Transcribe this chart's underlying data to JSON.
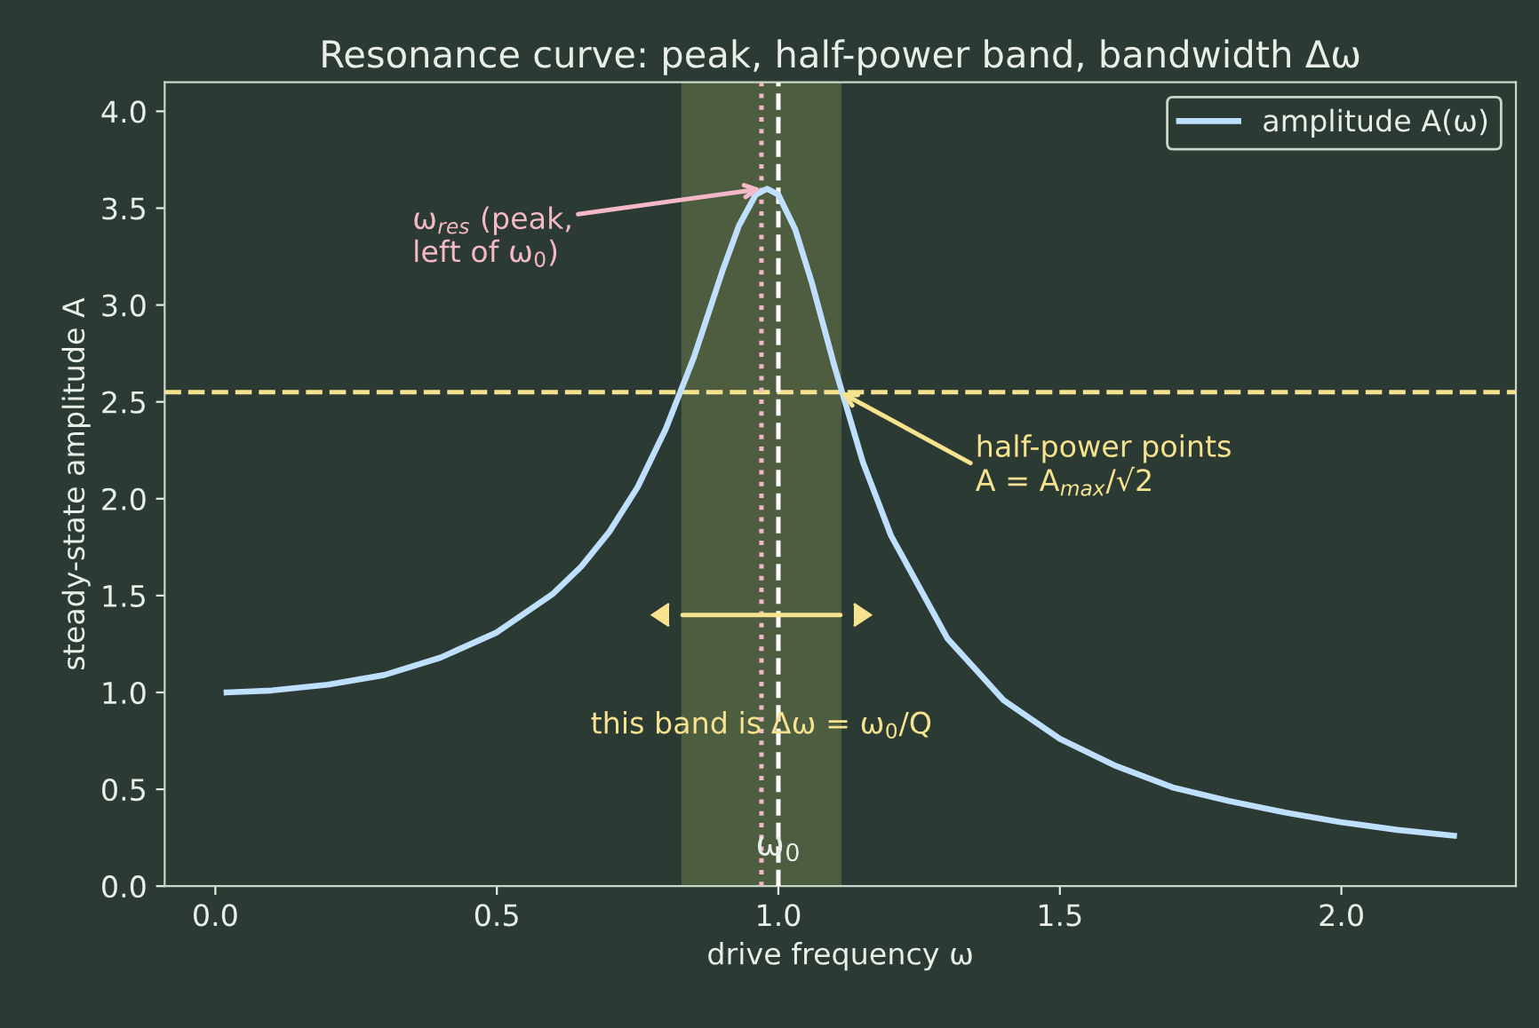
{
  "chart_data": {
    "type": "line",
    "title": "Resonance curve: peak, half-power band, bandwidth Δω",
    "xlabel": "drive frequency ω",
    "ylabel": "steady-state amplitude A",
    "series": [
      {
        "name": "amplitude A(ω)",
        "color": "#bfdfff",
        "x": [
          0.02,
          0.1,
          0.2,
          0.3,
          0.4,
          0.5,
          0.6,
          0.65,
          0.7,
          0.75,
          0.8,
          0.85,
          0.9,
          0.93,
          0.96,
          0.98,
          1.0,
          1.03,
          1.06,
          1.1,
          1.15,
          1.2,
          1.3,
          1.4,
          1.5,
          1.6,
          1.7,
          1.8,
          1.9,
          2.0,
          2.1,
          2.2
        ],
        "values": [
          1.0,
          1.01,
          1.04,
          1.09,
          1.18,
          1.31,
          1.51,
          1.65,
          1.83,
          2.06,
          2.36,
          2.73,
          3.17,
          3.41,
          3.57,
          3.6,
          3.57,
          3.39,
          3.11,
          2.68,
          2.19,
          1.81,
          1.28,
          0.96,
          0.76,
          0.62,
          0.51,
          0.44,
          0.38,
          0.33,
          0.29,
          0.26
        ]
      },
      {
        "type": "line",
        "color": "#f7e38f",
        "x": [
          0.83,
          1.11
        ],
        "values": [
          1.4,
          1.4
        ]
      }
    ],
    "xlim": [
      -0.09,
      2.31
    ],
    "ylim": [
      0,
      4.15
    ],
    "xticks": [
      {
        "value": 0,
        "label": "0.0"
      },
      {
        "value": 0.5,
        "label": "0.5"
      },
      {
        "value": 1,
        "label": "1.0"
      },
      {
        "value": 1.5,
        "label": "1.5"
      },
      {
        "value": 2,
        "label": "2.0"
      }
    ],
    "yticks": [
      {
        "value": 0,
        "label": "0.0"
      },
      {
        "value": 0.5,
        "label": "0.5"
      },
      {
        "value": 1,
        "label": "1.0"
      },
      {
        "value": 1.5,
        "label": "1.5"
      },
      {
        "value": 2,
        "label": "2.0"
      },
      {
        "value": 2.5,
        "label": "2.5"
      },
      {
        "value": 3,
        "label": "3.0"
      },
      {
        "value": 3.5,
        "label": "3.5"
      },
      {
        "value": 4,
        "label": "4.0"
      }
    ],
    "ref_lines": [
      {
        "axis": "y",
        "value": 2.55,
        "color": "#f7e38f",
        "line_style": "dashed"
      },
      {
        "axis": "x",
        "value": 0.97,
        "color": "#f4b8c8",
        "line_style": "dotted"
      },
      {
        "axis": "x",
        "value": 1.0,
        "label": "ω$_{0}$",
        "color": "#ffffff",
        "line_style": "dashed"
      }
    ],
    "bands": [
      {
        "axis": "x",
        "from": 0.83,
        "to": 1.11,
        "label": "this band is Δω = ω$_{0}$/Q",
        "color": "#6b7a4a"
      }
    ],
    "annotations": [
      {
        "text": "ω$_{res}$ (peak,\nleft of ω$_{0}$)",
        "x": 0.97,
        "y": 3.6
      },
      {
        "text": "half-power points\nA = A$_{max}$/√2",
        "x": 1.11,
        "y": 2.55
      }
    ],
    "marker": "none",
    "line_style": "solid",
    "grid": false,
    "legend": "top right"
  }
}
